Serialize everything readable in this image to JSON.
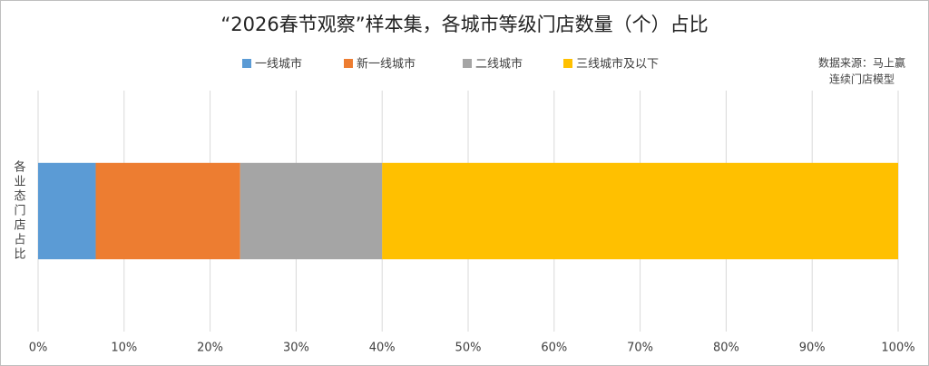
{
  "chart_data": {
    "type": "stacked-bar-horizontal",
    "title": "“2026春节观察”样本集，各城市等级门店数量（个）占比",
    "source": [
      "数据来源：马上赢",
      "连续门店模型"
    ],
    "categories": [
      "各业态门店占比"
    ],
    "series": [
      {
        "name": "一线城市",
        "color": "#5b9bd5",
        "values": [
          6.7
        ]
      },
      {
        "name": "新一线城市",
        "color": "#ed7d31",
        "values": [
          16.8
        ]
      },
      {
        "name": "二线城市",
        "color": "#a5a5a5",
        "values": [
          16.5
        ]
      },
      {
        "name": "三线城市及以下",
        "color": "#ffc000",
        "values": [
          60
        ]
      }
    ],
    "xlim": [
      0,
      100
    ],
    "xticks": [
      {
        "value": 0,
        "label": "0%"
      },
      {
        "value": 10,
        "label": "10%"
      },
      {
        "value": 20,
        "label": "20%"
      },
      {
        "value": 30,
        "label": "30%"
      },
      {
        "value": 40,
        "label": "40%"
      },
      {
        "value": 50,
        "label": "50%"
      },
      {
        "value": 60,
        "label": "60%"
      },
      {
        "value": 70,
        "label": "70%"
      },
      {
        "value": 80,
        "label": "80%"
      },
      {
        "value": 90,
        "label": "90%"
      },
      {
        "value": 100,
        "label": "100%"
      }
    ],
    "grid": true
  }
}
